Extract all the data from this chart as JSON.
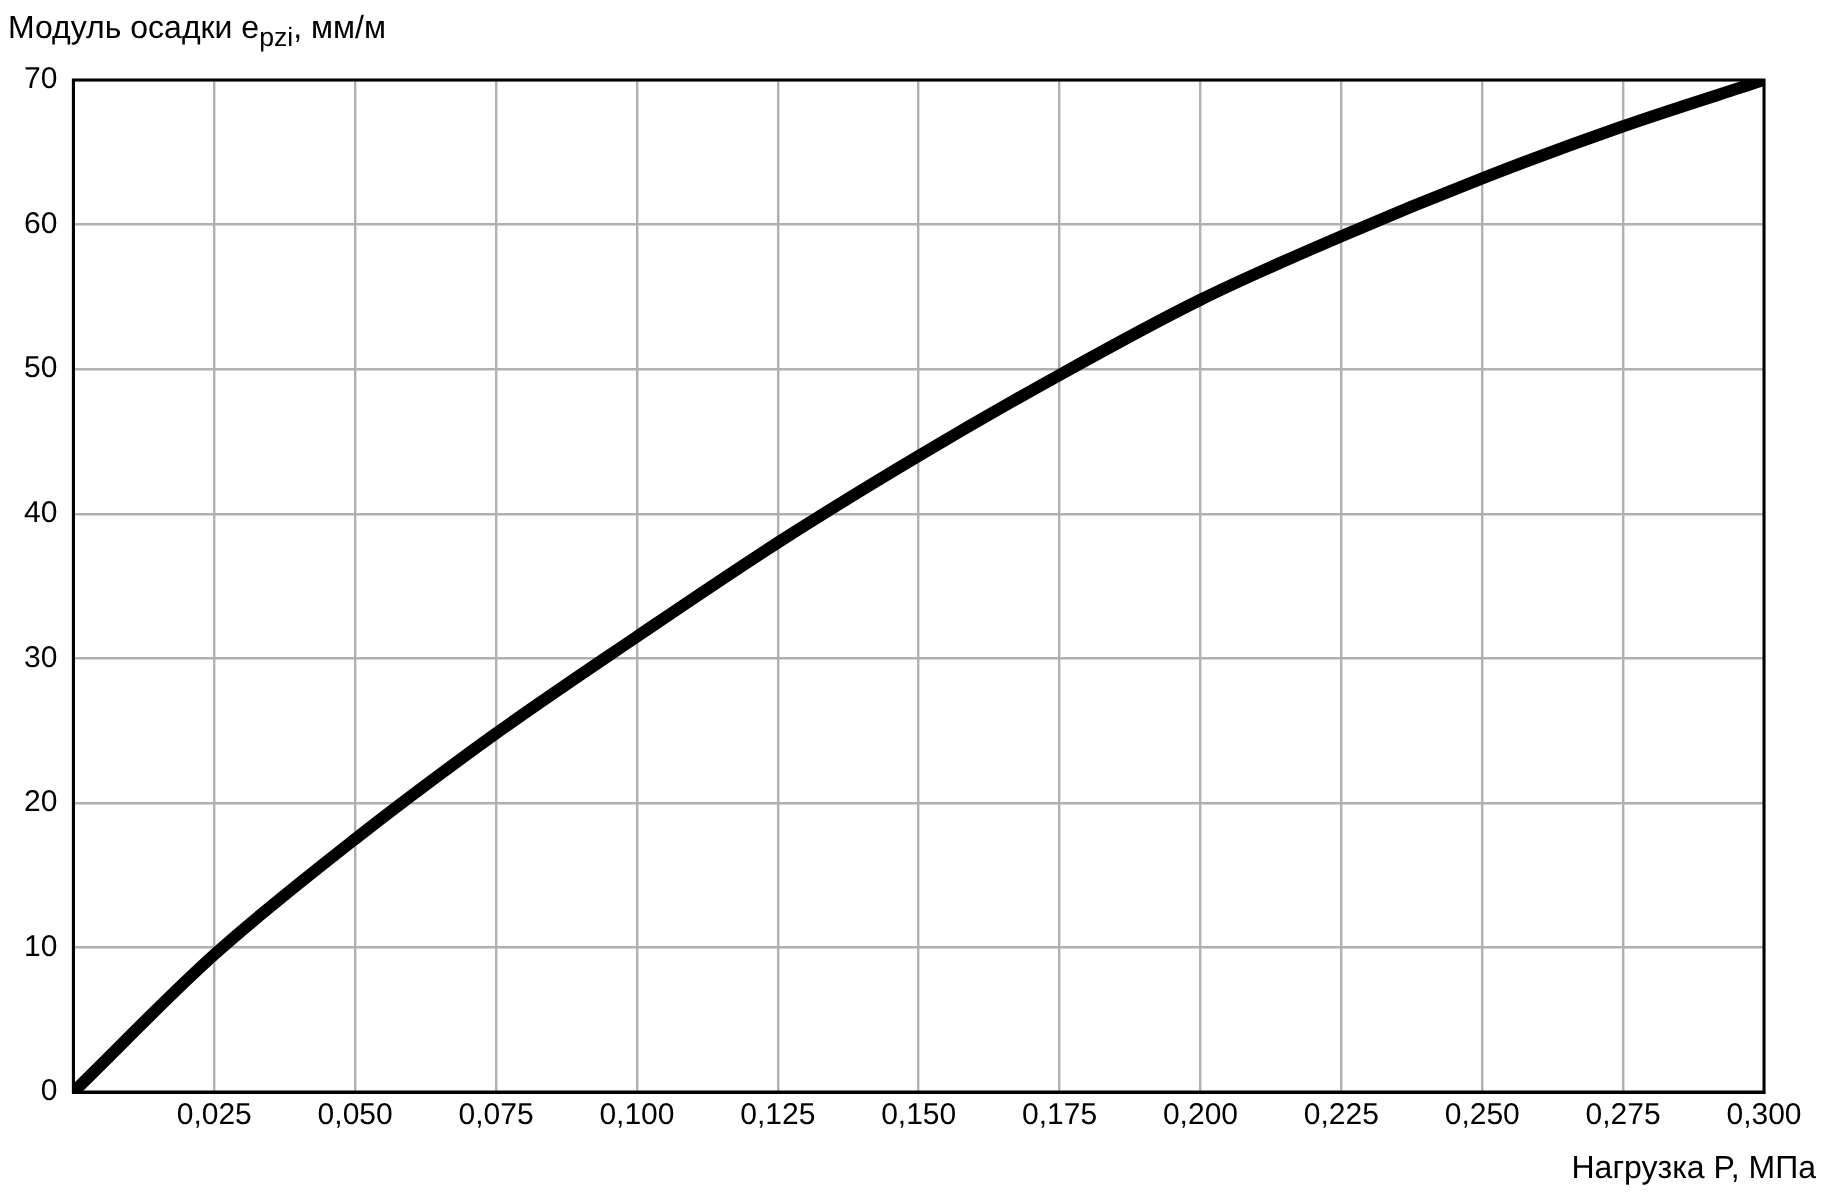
{
  "chart_data": {
    "type": "line",
    "xlabel": "Нагрузка P, МПа",
    "ylabel": "Модуль осадки e$_{pzi}$, мм/м",
    "x": [
      0,
      0.025,
      0.05,
      0.075,
      0.1,
      0.125,
      0.15,
      0.175,
      0.2,
      0.225,
      0.25,
      0.275,
      0.3
    ],
    "series": [
      {
        "color": "#000000",
        "values": [
          0,
          9.5,
          17.5,
          24.8,
          31.5,
          38,
          44,
          49.6,
          54.8,
          59.2,
          63.2,
          66.8,
          70
        ]
      }
    ],
    "xlim": [
      0,
      0.3
    ],
    "xticks": [
      {
        "value": 0,
        "label": null
      },
      {
        "value": 0.025,
        "label": "0,025"
      },
      {
        "value": 0.05,
        "label": "0,050"
      },
      {
        "value": 0.075,
        "label": "0,075"
      },
      {
        "value": 0.1,
        "label": "0,100"
      },
      {
        "value": 0.125,
        "label": "0,125"
      },
      {
        "value": 0.15,
        "label": "0,150"
      },
      {
        "value": 0.175,
        "label": "0,175"
      },
      {
        "value": 0.2,
        "label": "0,200"
      },
      {
        "value": 0.225,
        "label": "0,225"
      },
      {
        "value": 0.25,
        "label": "0,250"
      },
      {
        "value": 0.275,
        "label": "0,275"
      },
      {
        "value": 0.3,
        "label": "0,300"
      }
    ],
    "ylim": [
      0,
      70
    ],
    "yticks": [
      0,
      10,
      20,
      30,
      40,
      50,
      60,
      70
    ],
    "grid": true,
    "legend": false,
    "marker": "none",
    "line_style": "solid"
  }
}
